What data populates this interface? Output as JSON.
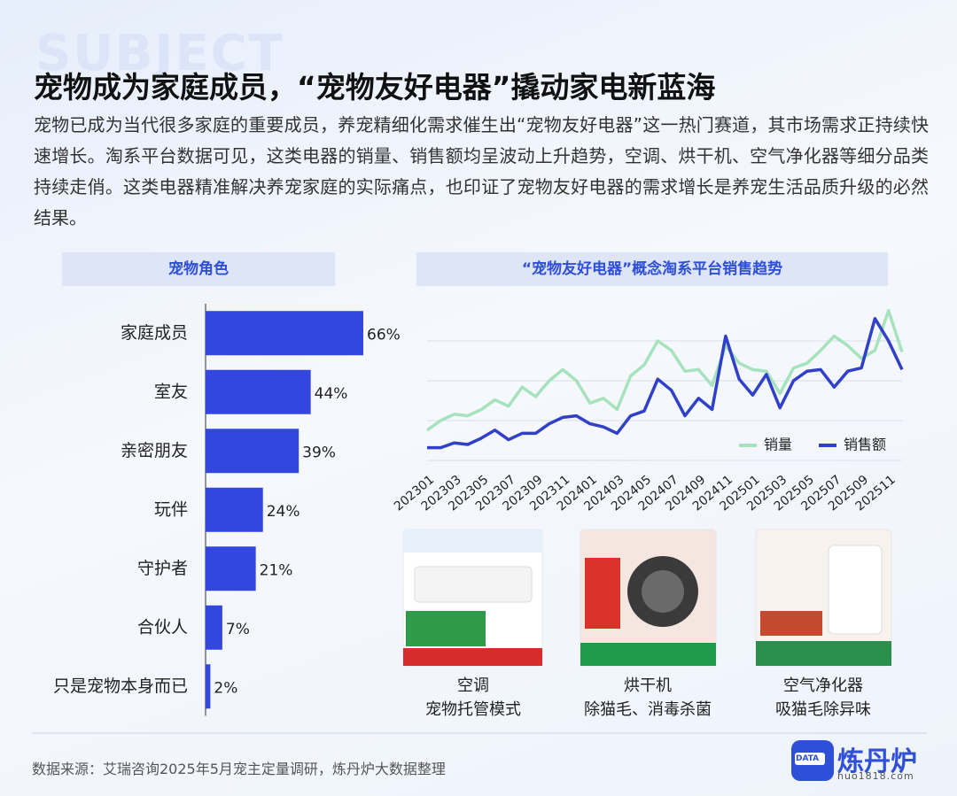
{
  "watermark": "SUBJECT",
  "header": {
    "title": "宠物成为家庭成员，“宠物友好电器”撬动家电新蓝海",
    "body": "宠物已成为当代很多家庭的重要成员，养宠精细化需求催生出“宠物友好电器”这一热门赛道，其市场需求正持续快速增长。淘系平台数据可见，这类电器的销量、销售额均呈波动上升趋势，空调、烘干机、空气净化器等细分品类持续走俏。这类电器精准解决养宠家庭的实际痛点，也印证了宠物友好电器的需求增长是养宠生活品质升级的必然结果。"
  },
  "chart_data": [
    {
      "type": "bar",
      "orientation": "horizontal",
      "title": "宠物角色",
      "categories": [
        "家庭成员",
        "室友",
        "亲密朋友",
        "玩伴",
        "守护者",
        "合伙人",
        "只是宠物本身而已"
      ],
      "values": [
        66,
        44,
        39,
        24,
        21,
        7,
        2
      ],
      "value_labels": [
        "66%",
        "44%",
        "39%",
        "24%",
        "21%",
        "7%",
        "2%"
      ],
      "color": "#3346dd"
    },
    {
      "type": "line",
      "title": "“宠物友好电器”概念淘系平台销售趋势",
      "categories": [
        "202301",
        null,
        "202303",
        null,
        "202305",
        null,
        "202307",
        null,
        "202309",
        null,
        "202311",
        null,
        "202401",
        null,
        "202403",
        null,
        "202405",
        null,
        "202407",
        null,
        "202409",
        null,
        "202411",
        null,
        "202501",
        null,
        "202503",
        null,
        "202505",
        null,
        "202507",
        null,
        "202509",
        null,
        "202511",
        null
      ],
      "series": [
        {
          "name": "销量",
          "color": "#a6e3bd",
          "values": [
            19,
            25,
            29,
            28,
            32,
            38,
            34,
            46,
            40,
            50,
            57,
            50,
            36,
            39,
            32,
            53,
            60,
            75,
            69,
            56,
            57,
            47,
            72,
            61,
            57,
            56,
            42,
            58,
            61,
            69,
            78,
            72,
            64,
            69,
            94,
            68
          ]
        },
        {
          "name": "销售额",
          "color": "#3040c8",
          "values": [
            8,
            8,
            11,
            10,
            14,
            19,
            13,
            17,
            17,
            23,
            27,
            28,
            23,
            21,
            17,
            28,
            31,
            51,
            44,
            28,
            39,
            32,
            78,
            51,
            41,
            54,
            33,
            50,
            56,
            57,
            46,
            56,
            58,
            89,
            75,
            57
          ]
        }
      ],
      "ylim": [
        0,
        100
      ],
      "grid": true,
      "legend": "lower right"
    }
  ],
  "products": [
    {
      "name": "空调",
      "feature": "宠物托管模式"
    },
    {
      "name": "烘干机",
      "feature": "除猫毛、消毒杀菌"
    },
    {
      "name": "空气净化器",
      "feature": "吸猫毛除异味"
    }
  ],
  "footer": {
    "source": "数据来源：艾瑞咨询2025年5月宠主定量调研，炼丹炉大数据整理",
    "logo": "炼丹炉",
    "badge": "DATA",
    "site": "huo1818.com"
  }
}
